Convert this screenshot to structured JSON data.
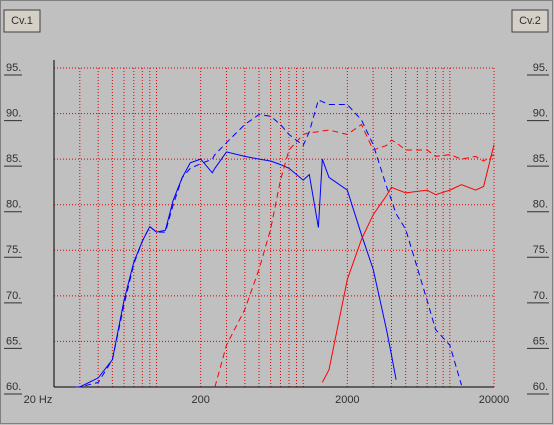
{
  "controls": {
    "left": "Cv.1",
    "right": "Cv.2"
  },
  "chart_data": {
    "type": "line",
    "xscale": "log",
    "grid": true,
    "grid_color": "#e00000",
    "xlim": [
      20,
      20000
    ],
    "xticks": [
      {
        "value": 20,
        "label": "20 Hz"
      },
      200,
      2000,
      20000
    ],
    "xgrid": [
      30,
      40,
      50,
      60,
      70,
      80,
      90,
      100,
      300,
      400,
      500,
      600,
      700,
      800,
      900,
      1000,
      3000,
      4000,
      5000,
      6000,
      7000,
      8000,
      9000,
      10000
    ],
    "ylim": [
      60,
      95
    ],
    "yticks": [
      {
        "value": 60,
        "label": "60."
      },
      {
        "value": 65,
        "label": "65."
      },
      {
        "value": 70,
        "label": "70."
      },
      {
        "value": 75,
        "label": "75."
      },
      {
        "value": 80,
        "label": "80."
      },
      {
        "value": 85,
        "label": "85."
      },
      {
        "value": 90,
        "label": "90."
      },
      {
        "value": 95,
        "label": "95."
      }
    ],
    "y2lim": [
      60,
      95
    ],
    "y2ticks": [
      {
        "value": 60,
        "label": "60."
      },
      {
        "value": 65,
        "label": "65."
      },
      {
        "value": 70,
        "label": "70."
      },
      {
        "value": 75,
        "label": "75."
      },
      {
        "value": 80,
        "label": "80."
      },
      {
        "value": 85,
        "label": "85."
      },
      {
        "value": 90,
        "label": "90."
      },
      {
        "value": 95,
        "label": "95."
      }
    ],
    "x": [
      20,
      25,
      28,
      30,
      40,
      50,
      60,
      70,
      80,
      90,
      100,
      115,
      130,
      150,
      170,
      200,
      240,
      250,
      300,
      400,
      500,
      600,
      700,
      800,
      1000,
      1100,
      1270,
      1350,
      1500,
      2000,
      2500,
      3000,
      3700,
      4000,
      4300,
      5000,
      7000,
      8000,
      10000,
      12000,
      15000,
      17000,
      20000
    ],
    "series": [
      {
        "color": "#0000ff",
        "dash": "solid",
        "values": [
          null,
          null,
          60,
          60,
          61,
          63,
          69.5,
          73.7,
          76,
          77.6,
          77,
          77.2,
          80.5,
          83,
          84.6,
          85,
          83.5,
          84,
          85.8,
          85.3,
          85,
          84.8,
          84.4,
          84,
          82.7,
          83.3,
          77.5,
          85,
          83,
          81.6,
          76.7,
          72.9,
          66.3,
          63.5,
          60.8,
          null,
          null,
          null,
          null,
          null,
          null,
          null,
          null
        ]
      },
      {
        "color": "#0000ff",
        "dash": "dashed",
        "values": [
          null,
          null,
          60,
          60,
          60.5,
          63,
          69,
          73.5,
          76,
          77.6,
          77,
          77,
          80,
          83,
          84,
          84.5,
          85,
          85.5,
          86.8,
          88.8,
          89.9,
          89.7,
          88.8,
          87.7,
          86.5,
          88,
          91.5,
          91.3,
          91,
          91,
          89.3,
          86.6,
          82,
          80.5,
          79,
          77.3,
          69.5,
          66.3,
          64.6,
          60.2,
          null,
          null,
          null
        ]
      },
      {
        "color": "#ff0000",
        "dash": "solid",
        "values": [
          null,
          null,
          null,
          null,
          null,
          null,
          null,
          null,
          null,
          null,
          null,
          null,
          null,
          null,
          null,
          null,
          null,
          null,
          null,
          null,
          null,
          null,
          null,
          null,
          null,
          null,
          null,
          60.5,
          61.9,
          71.8,
          76.2,
          78.9,
          81,
          81.9,
          81.7,
          81.3,
          81.6,
          81.1,
          81.6,
          82.2,
          81.6,
          82,
          86.6
        ]
      },
      {
        "color": "#ff0000",
        "dash": "dashed",
        "values": [
          null,
          null,
          null,
          null,
          null,
          null,
          null,
          null,
          null,
          null,
          null,
          null,
          null,
          null,
          null,
          null,
          null,
          60,
          64.6,
          68.5,
          72.9,
          77.3,
          82.7,
          86,
          87.7,
          87.9,
          88,
          88.1,
          88.2,
          87.7,
          88.8,
          86,
          86.5,
          87.1,
          86.8,
          86,
          86,
          85.3,
          85.5,
          85,
          85.3,
          84.8,
          85.5
        ]
      }
    ]
  }
}
